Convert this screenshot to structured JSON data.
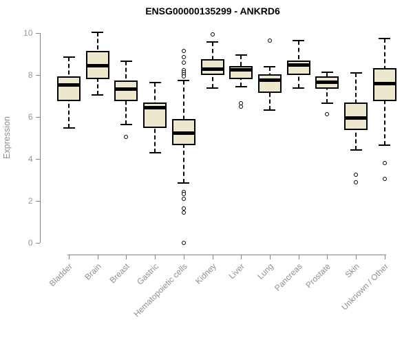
{
  "chart_data": {
    "type": "box",
    "title": "ENSG00000135299 - ANKRD6",
    "ylabel": "Expression",
    "xlabel": "",
    "ylim": [
      0,
      10
    ],
    "yticks": [
      0,
      2,
      4,
      6,
      8,
      10
    ],
    "grid": false,
    "legend": null,
    "categories": [
      "Bladder",
      "Brain",
      "Breast",
      "Gastric",
      "Hematopoietic cells",
      "Kidney",
      "Liver",
      "Lung",
      "Pancreas",
      "Prostate",
      "Skin",
      "Unknown / Other"
    ],
    "series": [
      {
        "category": "Bladder",
        "whisker_low": 5.5,
        "q1": 6.75,
        "median": 7.55,
        "q3": 7.95,
        "whisker_high": 8.85,
        "outliers": []
      },
      {
        "category": "Brain",
        "whisker_low": 7.05,
        "q1": 7.8,
        "median": 8.45,
        "q3": 9.15,
        "whisker_high": 10.05,
        "outliers": []
      },
      {
        "category": "Breast",
        "whisker_low": 5.65,
        "q1": 6.75,
        "median": 7.35,
        "q3": 7.75,
        "whisker_high": 8.65,
        "outliers": [
          5.05
        ]
      },
      {
        "category": "Gastric",
        "whisker_low": 4.3,
        "q1": 5.5,
        "median": 6.45,
        "q3": 6.7,
        "whisker_high": 7.65,
        "outliers": []
      },
      {
        "category": "Hematopoietic cells",
        "whisker_low": 2.85,
        "q1": 4.65,
        "median": 5.25,
        "q3": 5.9,
        "whisker_high": 7.75,
        "outliers": [
          9.15,
          8.85,
          8.6,
          8.25,
          8.15,
          8.05,
          7.95,
          2.45,
          2.35,
          2.1,
          1.65,
          1.45,
          0.0
        ]
      },
      {
        "category": "Kidney",
        "whisker_low": 7.4,
        "q1": 8.0,
        "median": 8.3,
        "q3": 8.75,
        "whisker_high": 9.6,
        "outliers": [
          9.95
        ]
      },
      {
        "category": "Liver",
        "whisker_low": 7.45,
        "q1": 7.8,
        "median": 8.25,
        "q3": 8.45,
        "whisker_high": 8.95,
        "outliers": [
          6.65,
          6.5
        ]
      },
      {
        "category": "Lung",
        "whisker_low": 6.35,
        "q1": 7.15,
        "median": 7.75,
        "q3": 8.05,
        "whisker_high": 8.4,
        "outliers": [
          9.65
        ]
      },
      {
        "category": "Pancreas",
        "whisker_low": 7.4,
        "q1": 8.0,
        "median": 8.5,
        "q3": 8.7,
        "whisker_high": 9.65,
        "outliers": []
      },
      {
        "category": "Prostate",
        "whisker_low": 6.65,
        "q1": 7.35,
        "median": 7.65,
        "q3": 7.95,
        "whisker_high": 8.15,
        "outliers": [
          6.15
        ]
      },
      {
        "category": "Skin",
        "whisker_low": 4.45,
        "q1": 5.4,
        "median": 5.95,
        "q3": 6.7,
        "whisker_high": 8.1,
        "outliers": [
          3.25,
          2.9
        ]
      },
      {
        "category": "Unknown / Other",
        "whisker_low": 4.65,
        "q1": 6.75,
        "median": 7.6,
        "q3": 8.35,
        "whisker_high": 9.75,
        "outliers": [
          3.8,
          3.05
        ]
      }
    ],
    "colors": {
      "box_fill": "#EDE7CE",
      "box_border": "#000000",
      "median": "#000000",
      "whisker": "#000000",
      "axis": "#838383",
      "tick_label": "#969696",
      "title": "#000000",
      "background": "#ffffff"
    }
  }
}
